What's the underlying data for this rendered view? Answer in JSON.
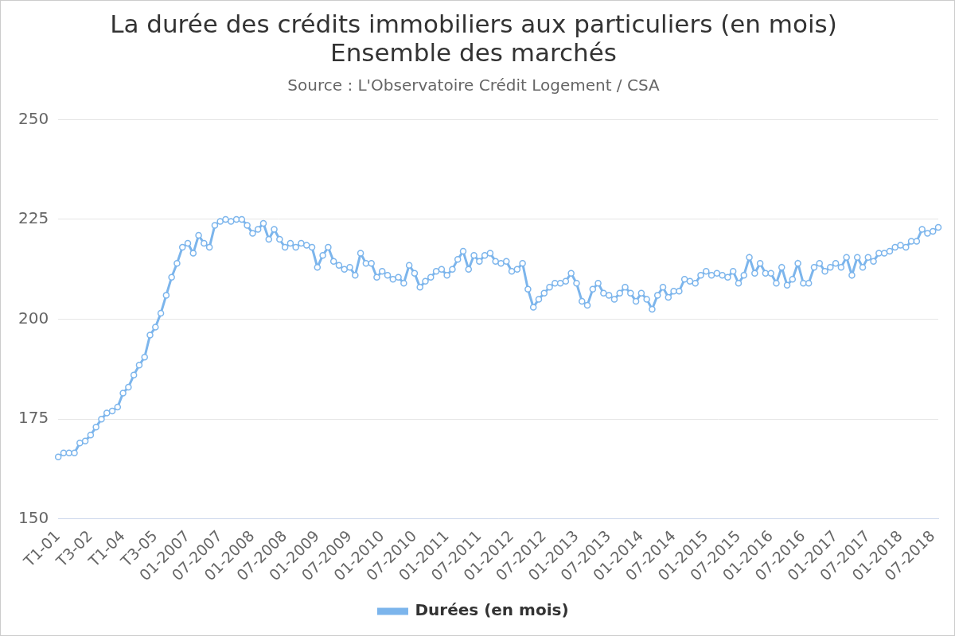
{
  "chart_data": {
    "type": "line",
    "title": [
      "La durée des crédits immobiliers aux particuliers (en mois)",
      "Ensemble des marchés"
    ],
    "subtitle": "Source : L'Observatoire Crédit Logement / CSA",
    "categories": [
      "T1-01",
      null,
      null,
      null,
      null,
      null,
      "T3-02",
      null,
      null,
      null,
      null,
      null,
      "T1-04",
      null,
      null,
      null,
      null,
      null,
      "T3-05",
      null,
      null,
      null,
      null,
      null,
      "01-2007",
      null,
      null,
      null,
      null,
      null,
      "07-2007",
      null,
      null,
      null,
      null,
      null,
      "01-2008",
      null,
      null,
      null,
      null,
      null,
      "07-2008",
      null,
      null,
      null,
      null,
      null,
      "01-2009",
      null,
      null,
      null,
      null,
      null,
      "07-2009",
      null,
      null,
      null,
      null,
      null,
      "01-2010",
      null,
      null,
      null,
      null,
      null,
      "07-2010",
      null,
      null,
      null,
      null,
      null,
      "01-2011",
      null,
      null,
      null,
      null,
      null,
      "07-2011",
      null,
      null,
      null,
      null,
      null,
      "01-2012",
      null,
      null,
      null,
      null,
      null,
      "07-2012",
      null,
      null,
      null,
      null,
      null,
      "01-2013",
      null,
      null,
      null,
      null,
      null,
      "07-2013",
      null,
      null,
      null,
      null,
      null,
      "01-2014",
      null,
      null,
      null,
      null,
      null,
      "07-2014",
      null,
      null,
      null,
      null,
      null,
      "01-2015",
      null,
      null,
      null,
      null,
      null,
      "07-2015",
      null,
      null,
      null,
      null,
      null,
      "01-2016",
      null,
      null,
      null,
      null,
      null,
      "07-2016",
      null,
      null,
      null,
      null,
      null,
      "01-2017",
      null,
      null,
      null,
      null,
      null,
      "07-2017",
      null,
      null,
      null,
      null,
      null,
      "01-2018",
      null,
      null,
      null,
      null,
      null,
      "07-2018",
      null
    ],
    "series": [
      {
        "name": "Durées (en mois)",
        "color": "#7cb5ec",
        "marker": "circle",
        "line_style": "solid",
        "values": [
          165.5,
          166.5,
          166.5,
          166.5,
          169,
          169.5,
          171,
          173,
          175,
          176.5,
          177,
          178,
          181.5,
          183,
          186,
          188.5,
          190.5,
          196,
          198,
          201.5,
          206,
          210.5,
          214,
          218,
          219,
          216.5,
          221,
          219,
          218,
          223.5,
          224.5,
          225,
          224.5,
          225,
          225,
          223.5,
          221.5,
          222.5,
          224,
          220,
          222.5,
          220,
          218,
          219,
          218,
          219,
          218.5,
          218,
          213,
          216,
          218,
          214.5,
          213.5,
          212.5,
          213,
          211,
          216.5,
          214,
          214,
          210.5,
          212,
          211,
          210,
          210.5,
          209,
          213.5,
          211.5,
          208,
          209.5,
          210.5,
          212,
          212.5,
          211,
          212.5,
          215,
          217,
          212.5,
          216,
          214.5,
          216,
          216.5,
          214.5,
          214,
          214.5,
          212,
          212.5,
          214,
          207.5,
          203,
          205,
          206.5,
          208,
          209,
          209,
          209.5,
          211.5,
          209,
          204.5,
          203.5,
          207.5,
          209,
          206.5,
          206,
          205,
          206.5,
          208,
          206.5,
          204.5,
          206.5,
          205,
          202.5,
          206,
          208,
          205.5,
          207,
          207,
          210,
          209.5,
          209,
          211,
          212,
          211,
          211.5,
          211,
          210.5,
          212,
          209,
          211,
          215.5,
          211.5,
          214,
          211.5,
          211.5,
          209,
          213,
          208.5,
          210,
          214,
          209,
          209,
          213,
          214,
          212,
          213,
          214,
          213,
          215.5,
          211,
          215.5,
          213,
          215.5,
          214.5,
          216.5,
          216.5,
          217,
          218,
          218.5,
          218,
          219.5,
          219.5,
          222.5,
          221.5,
          222,
          223
        ]
      }
    ],
    "ylim": [
      150,
      250
    ],
    "yticks": [
      150,
      175,
      200,
      225,
      250
    ],
    "grid": true,
    "legend": "bottom"
  }
}
